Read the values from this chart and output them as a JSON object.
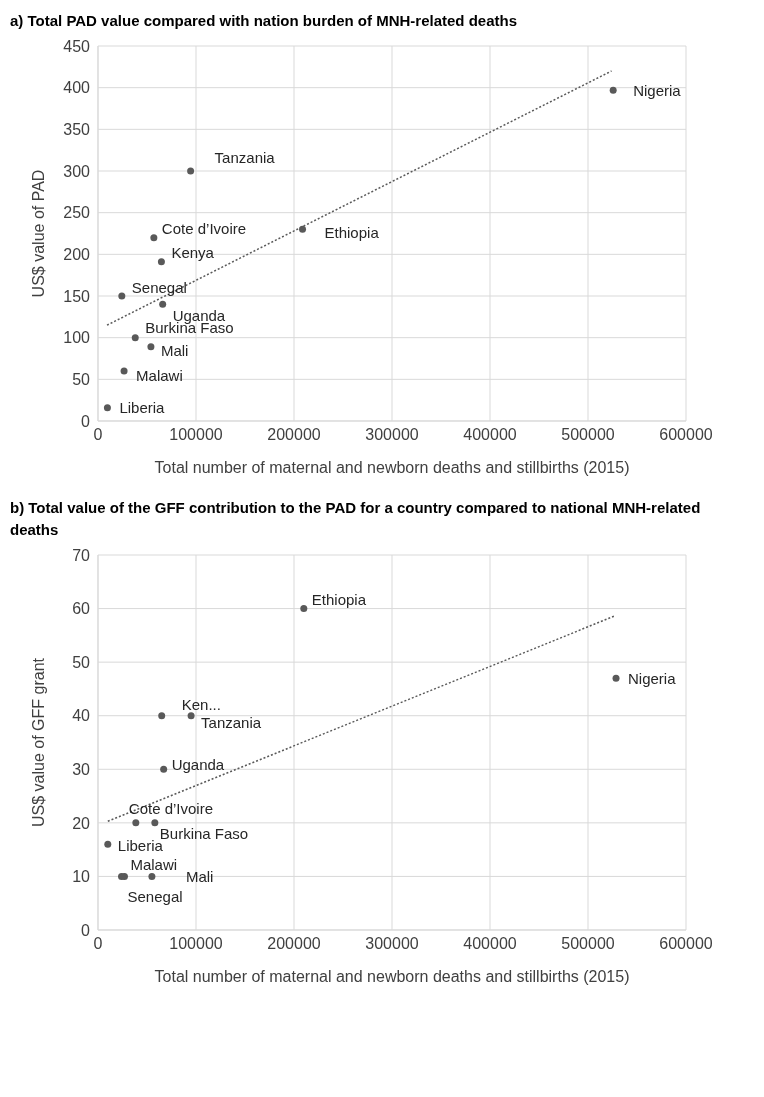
{
  "chart_data": [
    {
      "type": "scatter",
      "title": "a) Total PAD value compared with nation burden of MNH-related deaths",
      "xlabel": "Total number of maternal and newborn deaths and stillbirths (2015)",
      "ylabel": "US$ value of PAD",
      "xlim": [
        0,
        600000
      ],
      "xticks": [
        0,
        100000,
        200000,
        300000,
        400000,
        500000,
        600000
      ],
      "ylim": [
        0,
        450
      ],
      "yticks": [
        0,
        50,
        100,
        150,
        200,
        250,
        300,
        350,
        400,
        450
      ],
      "grid": true,
      "legend": false,
      "series": [
        {
          "color": "#595959",
          "marker": "circle",
          "x": [
            525700,
            94500,
            208700,
            57000,
            64700,
            24300,
            66000,
            38000,
            54000,
            26600,
            9600
          ],
          "values": [
            397,
            300,
            230,
            220,
            191,
            150,
            140,
            100,
            89,
            60,
            16
          ]
        },
        {
          "type": "line",
          "color": "#595959",
          "marker": "none",
          "line_style": "dotted",
          "x": [
            9200,
            524000
          ],
          "values": [
            115,
            420
          ]
        }
      ],
      "annotations": [
        {
          "text": "Nigeria",
          "x": 525700,
          "y": 397
        },
        {
          "text": "Tanzania",
          "x": 94500,
          "y": 300
        },
        {
          "text": "Ethiopia",
          "x": 208700,
          "y": 230
        },
        {
          "text": "Cote d’Ivoire",
          "x": 57000,
          "y": 220
        },
        {
          "text": "Kenya",
          "x": 64700,
          "y": 191
        },
        {
          "text": "Senegal",
          "x": 24300,
          "y": 150
        },
        {
          "text": "Uganda",
          "x": 66000,
          "y": 140
        },
        {
          "text": "Burkina Faso",
          "x": 38000,
          "y": 100
        },
        {
          "text": "Mali",
          "x": 54000,
          "y": 89
        },
        {
          "text": "Malawi",
          "x": 26600,
          "y": 60
        },
        {
          "text": "Liberia",
          "x": 9600,
          "y": 16
        }
      ]
    },
    {
      "type": "scatter",
      "title": "b) Total value of the GFF contribution to the PAD for a country compared to national MNH-related deaths",
      "xlabel": "Total number of maternal and newborn deaths and stillbirths (2015)",
      "ylabel": "US$ value of GFF grant",
      "xlim": [
        0,
        600000
      ],
      "xticks": [
        0,
        100000,
        200000,
        300000,
        400000,
        500000,
        600000
      ],
      "ylim": [
        0,
        70
      ],
      "yticks": [
        0,
        10,
        20,
        30,
        40,
        50,
        60,
        70
      ],
      "grid": true,
      "legend": false,
      "series": [
        {
          "color": "#595959",
          "marker": "circle",
          "x": [
            210000,
            528600,
            65000,
            95000,
            67000,
            58000,
            38600,
            10000,
            27000,
            24000,
            55000
          ],
          "values": [
            60,
            47,
            40,
            40,
            30,
            20,
            20,
            16,
            10,
            10,
            10
          ]
        },
        {
          "type": "line",
          "color": "#595959",
          "marker": "none",
          "line_style": "dotted",
          "x": [
            10000,
            527000
          ],
          "values": [
            20.3,
            58.6
          ]
        }
      ],
      "annotations": [
        {
          "text": "Ethiopia",
          "x": 210000,
          "y": 60
        },
        {
          "text": "Nigeria",
          "x": 528600,
          "y": 47
        },
        {
          "text": "Ken...",
          "x": 65000,
          "y": 40
        },
        {
          "text": "Tanzania",
          "x": 95000,
          "y": 40
        },
        {
          "text": "Uganda",
          "x": 67000,
          "y": 30
        },
        {
          "text": "Cote d’Ivoire",
          "x": 58000,
          "y": 20
        },
        {
          "text": "Burkina Faso",
          "x": 38600,
          "y": 20
        },
        {
          "text": "Liberia",
          "x": 10000,
          "y": 16
        },
        {
          "text": "Malawi",
          "x": 27000,
          "y": 10
        },
        {
          "text": "Senegal",
          "x": 24000,
          "y": 10
        },
        {
          "text": "Mali",
          "x": 55000,
          "y": 10
        }
      ]
    }
  ]
}
